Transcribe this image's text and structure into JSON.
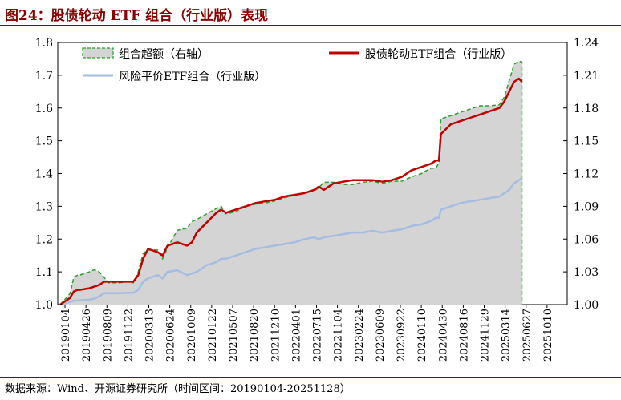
{
  "title": "图24：股债轮动 ETF 组合（行业版）表现",
  "source": "数据来源：Wind、开源证券研究所（时间区间：20190104-20251128）",
  "colors": {
    "excess_fill": "#d4d4d4",
    "excess_edge": "#2aa02a",
    "rotation": "#c00000",
    "risk_parity": "#a4bde0",
    "title": "#8b0000"
  },
  "chart_data": {
    "type": "line",
    "left_axis": {
      "ylim": [
        1.0,
        1.8
      ],
      "ticks": [
        "1.0",
        "1.1",
        "1.2",
        "1.3",
        "1.4",
        "1.5",
        "1.6",
        "1.7",
        "1.8"
      ]
    },
    "right_axis": {
      "ylim": [
        1.0,
        1.24
      ],
      "ticks": [
        "1.00",
        "1.03",
        "1.06",
        "1.09",
        "1.12",
        "1.15",
        "1.18",
        "1.21",
        "1.24"
      ]
    },
    "x_tick_labels": [
      "20190104",
      "20190426",
      "20190809",
      "20191122",
      "20200313",
      "20200624",
      "20201009",
      "20210122",
      "20210507",
      "20210820",
      "20211210",
      "20220401",
      "20220715",
      "20221104",
      "20230224",
      "20230609",
      "20230922",
      "20240110",
      "20240430",
      "20240816",
      "20241129",
      "20250314",
      "20250627",
      "20251010"
    ],
    "x_range": [
      0,
      50
    ],
    "legend": [
      "组合超额（右轴）",
      "股债轮动ETF组合（行业版）",
      "风险平价ETF组合（行业版）"
    ],
    "legend_position": "top",
    "series": [
      {
        "name": "组合超额（右轴）",
        "type": "area",
        "axis": "right",
        "x": [
          0,
          0.5,
          1,
          1.4,
          1.8,
          2,
          3,
          3.5,
          4,
          4.5,
          5,
          6,
          7,
          7.5,
          8,
          8.5,
          9,
          10,
          10.5,
          11,
          12,
          13,
          13.5,
          14,
          15,
          16,
          16.5,
          17,
          18,
          19,
          20,
          21,
          22,
          23,
          24,
          25,
          26,
          26.5,
          27,
          28,
          29,
          30,
          31,
          32,
          33,
          34,
          35,
          36,
          37,
          38,
          38.5,
          38.8,
          39,
          40,
          41,
          42,
          43,
          44,
          45,
          45.5,
          46,
          46.5,
          47,
          47.3
        ],
        "y": [
          1.0,
          1.005,
          1.01,
          1.025,
          1.027,
          1.027,
          1.03,
          1.032,
          1.03,
          1.025,
          1.02,
          1.02,
          1.021,
          1.02,
          1.03,
          1.047,
          1.05,
          1.05,
          1.042,
          1.052,
          1.068,
          1.07,
          1.076,
          1.078,
          1.083,
          1.088,
          1.09,
          1.083,
          1.085,
          1.09,
          1.092,
          1.093,
          1.095,
          1.098,
          1.1,
          1.102,
          1.104,
          1.107,
          1.112,
          1.112,
          1.11,
          1.11,
          1.112,
          1.113,
          1.111,
          1.113,
          1.113,
          1.117,
          1.12,
          1.125,
          1.125,
          1.13,
          1.17,
          1.173,
          1.176,
          1.179,
          1.182,
          1.182,
          1.183,
          1.19,
          1.205,
          1.22,
          1.223,
          1.222
        ]
      },
      {
        "name": "股债轮动ETF组合（行业版）",
        "axis": "left",
        "x": [
          0,
          0.5,
          1,
          1.4,
          1.8,
          2,
          3,
          3.5,
          4,
          4.5,
          5,
          6,
          7,
          7.5,
          8,
          8.5,
          9,
          10,
          10.5,
          11,
          12,
          13,
          13.5,
          14,
          15,
          16,
          16.5,
          17,
          18,
          19,
          20,
          21,
          22,
          23,
          24,
          25,
          26,
          26.5,
          27,
          28,
          29,
          30,
          31,
          32,
          33,
          34,
          35,
          36,
          37,
          38,
          38.5,
          38.8,
          39,
          40,
          41,
          42,
          43,
          44,
          45,
          45.5,
          46,
          46.5,
          47,
          47.3
        ],
        "y": [
          1.0,
          1.01,
          1.02,
          1.04,
          1.045,
          1.045,
          1.05,
          1.055,
          1.06,
          1.07,
          1.07,
          1.07,
          1.07,
          1.07,
          1.09,
          1.14,
          1.17,
          1.16,
          1.15,
          1.18,
          1.19,
          1.18,
          1.19,
          1.22,
          1.25,
          1.28,
          1.29,
          1.28,
          1.29,
          1.3,
          1.31,
          1.315,
          1.32,
          1.33,
          1.335,
          1.34,
          1.35,
          1.36,
          1.35,
          1.37,
          1.375,
          1.38,
          1.38,
          1.38,
          1.375,
          1.38,
          1.39,
          1.41,
          1.42,
          1.43,
          1.44,
          1.44,
          1.52,
          1.55,
          1.56,
          1.57,
          1.58,
          1.59,
          1.6,
          1.62,
          1.65,
          1.68,
          1.69,
          1.68
        ]
      },
      {
        "name": "风险平价ETF组合（行业版）",
        "axis": "left",
        "x": [
          0,
          0.5,
          1,
          1.4,
          1.8,
          2,
          3,
          3.5,
          4,
          4.5,
          5,
          6,
          7,
          7.5,
          8,
          8.5,
          9,
          10,
          10.5,
          11,
          12,
          13,
          13.5,
          14,
          15,
          16,
          16.5,
          17,
          18,
          19,
          20,
          21,
          22,
          23,
          24,
          25,
          26,
          26.5,
          27,
          28,
          29,
          30,
          31,
          32,
          33,
          34,
          35,
          36,
          37,
          38,
          38.5,
          38.8,
          39,
          40,
          41,
          42,
          43,
          44,
          45,
          45.5,
          46,
          46.5,
          47,
          47.3
        ],
        "y": [
          1.0,
          1.004,
          1.008,
          1.012,
          1.013,
          1.013,
          1.015,
          1.018,
          1.025,
          1.035,
          1.035,
          1.035,
          1.036,
          1.036,
          1.045,
          1.07,
          1.08,
          1.09,
          1.08,
          1.1,
          1.105,
          1.09,
          1.095,
          1.1,
          1.12,
          1.13,
          1.14,
          1.14,
          1.15,
          1.16,
          1.17,
          1.175,
          1.18,
          1.185,
          1.19,
          1.2,
          1.205,
          1.2,
          1.205,
          1.21,
          1.215,
          1.22,
          1.22,
          1.225,
          1.22,
          1.225,
          1.23,
          1.24,
          1.245,
          1.255,
          1.265,
          1.265,
          1.29,
          1.3,
          1.31,
          1.315,
          1.32,
          1.325,
          1.33,
          1.34,
          1.35,
          1.37,
          1.38,
          1.385
        ]
      }
    ]
  }
}
